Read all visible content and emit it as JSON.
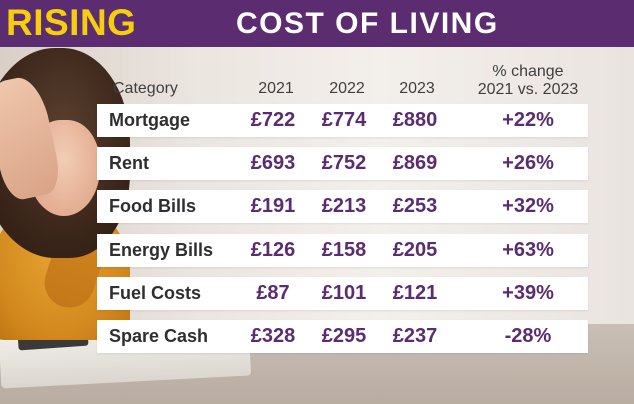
{
  "header": {
    "title_word1": "RISING",
    "title_word2": "COST OF LIVING"
  },
  "table": {
    "columns": {
      "category": "Category",
      "y2021": "2021",
      "y2022": "2022",
      "y2023": "2023",
      "change_line1": "% change",
      "change_line2": "2021 vs. 2023"
    },
    "rows": [
      {
        "category": "Mortgage",
        "y2021": "£722",
        "y2022": "£774",
        "y2023": "£880",
        "change": "+22%"
      },
      {
        "category": "Rent",
        "y2021": "£693",
        "y2022": "£752",
        "y2023": "£869",
        "change": "+26%"
      },
      {
        "category": "Food Bills",
        "y2021": "£191",
        "y2022": "£213",
        "y2023": "£253",
        "change": "+32%"
      },
      {
        "category": "Energy Bills",
        "y2021": "£126",
        "y2022": "£158",
        "y2023": "£205",
        "change": "+63%"
      },
      {
        "category": "Fuel Costs",
        "y2021": "£87",
        "y2022": "£101",
        "y2023": "£121",
        "change": "+39%"
      },
      {
        "category": "Spare Cash",
        "y2021": "£328",
        "y2022": "£295",
        "y2023": "£237",
        "change": "-28%"
      }
    ]
  },
  "colors": {
    "header_bg": "#5b2c6f",
    "header_accent": "#f6cf0c",
    "value_text": "#5b2c6f"
  }
}
